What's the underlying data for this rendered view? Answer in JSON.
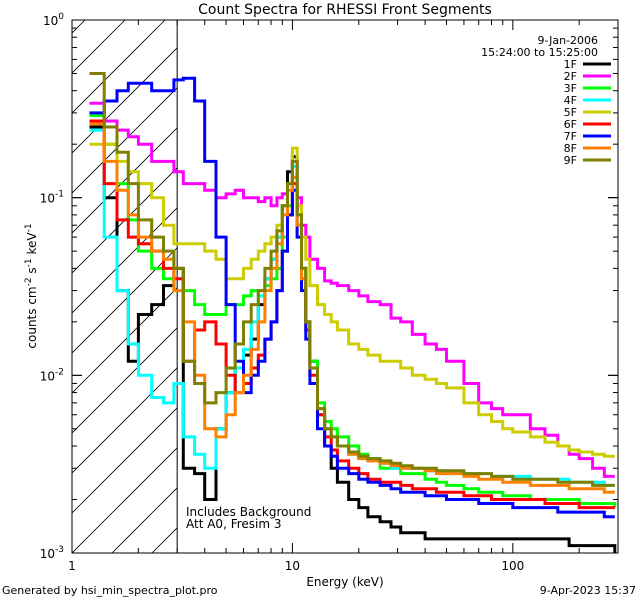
{
  "chart_data": {
    "type": "line",
    "title": "Count Spectra for RHESSI Front Segments",
    "xlabel": "Energy (keV)",
    "ylabel_parts": [
      "counts cm",
      "-2",
      " s",
      "-1",
      " keV",
      "-1"
    ],
    "xscale": "log",
    "yscale": "log",
    "xlim": [
      1,
      300
    ],
    "ylim": [
      0.001,
      1.0
    ],
    "x_ticks": [
      {
        "value": 1,
        "label": "1"
      },
      {
        "value": 10,
        "label": "10"
      },
      {
        "value": 100,
        "label": "100"
      }
    ],
    "y_ticks": [
      {
        "value": 1.0,
        "base": "10",
        "exp": "0"
      },
      {
        "value": 0.1,
        "base": "10",
        "exp": "-1"
      },
      {
        "value": 0.01,
        "base": "10",
        "exp": "-2"
      },
      {
        "value": 0.001,
        "base": "10",
        "exp": "-3"
      }
    ],
    "date_label": "9-Jan-2006",
    "time_label": "15:24:00 to 15:25:00",
    "annotations": [
      "Includes Background",
      "Att A0, Fresim 3"
    ],
    "hatch_region_x": [
      1,
      3
    ],
    "series": [
      {
        "name": "1F",
        "color": "#000000",
        "x": [
          1.2,
          1.4,
          1.6,
          1.8,
          2.0,
          2.3,
          2.6,
          2.9,
          3.2,
          3.6,
          4.0,
          4.5,
          5.0,
          5.5,
          6.0,
          6.5,
          7.0,
          7.5,
          8.0,
          8.5,
          9.0,
          9.5,
          10.0,
          10.5,
          11.0,
          11.5,
          12.0,
          13,
          14,
          15,
          16,
          18,
          20,
          22,
          25,
          28,
          31,
          35,
          40,
          45,
          50,
          60,
          70,
          80,
          90,
          100,
          120,
          140,
          160,
          180,
          200,
          230,
          260,
          290
        ],
        "y": [
          0.25,
          0.1,
          0.03,
          0.012,
          0.022,
          0.025,
          0.032,
          0.04,
          0.003,
          0.0028,
          0.002,
          0.005,
          0.008,
          0.011,
          0.013,
          0.016,
          0.025,
          0.035,
          0.045,
          0.06,
          0.09,
          0.14,
          0.17,
          0.08,
          0.04,
          0.02,
          0.012,
          0.006,
          0.004,
          0.003,
          0.0025,
          0.002,
          0.0018,
          0.0016,
          0.0015,
          0.0014,
          0.0013,
          0.0013,
          0.0012,
          0.0012,
          0.0012,
          0.0012,
          0.0012,
          0.0012,
          0.0012,
          0.0012,
          0.0012,
          0.0012,
          0.0012,
          0.0011,
          0.0011,
          0.0011,
          0.0011,
          0.001
        ]
      },
      {
        "name": "2F",
        "color": "#ff00ff",
        "x": [
          1.2,
          1.4,
          1.6,
          1.8,
          2.0,
          2.3,
          2.6,
          2.9,
          3.2,
          3.6,
          4.0,
          4.5,
          5.0,
          5.5,
          6.0,
          6.5,
          7.0,
          7.5,
          8.0,
          8.5,
          9.0,
          9.5,
          10.0,
          10.5,
          11.0,
          11.5,
          12.0,
          13,
          14,
          15,
          16,
          18,
          20,
          22,
          25,
          28,
          31,
          35,
          40,
          45,
          50,
          60,
          70,
          80,
          90,
          100,
          120,
          140,
          160,
          180,
          200,
          230,
          260,
          290
        ],
        "y": [
          0.34,
          0.27,
          0.24,
          0.22,
          0.2,
          0.16,
          0.16,
          0.14,
          0.12,
          0.12,
          0.11,
          0.1,
          0.105,
          0.11,
          0.1,
          0.1,
          0.095,
          0.1,
          0.09,
          0.1,
          0.105,
          0.12,
          0.16,
          0.1,
          0.07,
          0.06,
          0.045,
          0.04,
          0.034,
          0.033,
          0.032,
          0.03,
          0.028,
          0.026,
          0.025,
          0.021,
          0.02,
          0.017,
          0.015,
          0.014,
          0.012,
          0.009,
          0.007,
          0.0065,
          0.006,
          0.006,
          0.005,
          0.0046,
          0.004,
          0.0036,
          0.0034,
          0.003,
          0.0027,
          0.0027
        ]
      },
      {
        "name": "3F",
        "color": "#00ff00",
        "x": [
          1.2,
          1.4,
          1.6,
          1.8,
          2.0,
          2.3,
          2.6,
          2.9,
          3.2,
          3.6,
          4.0,
          4.5,
          5.0,
          5.5,
          6.0,
          6.5,
          7.0,
          7.5,
          8.0,
          8.5,
          9.0,
          9.5,
          10.0,
          10.5,
          11.0,
          11.5,
          12.0,
          13,
          14,
          15,
          16,
          18,
          20,
          22,
          25,
          28,
          31,
          35,
          40,
          45,
          50,
          60,
          70,
          80,
          90,
          100,
          120,
          140,
          160,
          180,
          200,
          230,
          260,
          290
        ],
        "y": [
          0.29,
          0.2,
          0.12,
          0.075,
          0.05,
          0.04,
          0.035,
          0.03,
          0.03,
          0.025,
          0.022,
          0.022,
          0.025,
          0.025,
          0.028,
          0.03,
          0.028,
          0.032,
          0.035,
          0.04,
          0.06,
          0.09,
          0.13,
          0.08,
          0.04,
          0.02,
          0.012,
          0.007,
          0.0055,
          0.005,
          0.0045,
          0.004,
          0.0036,
          0.0034,
          0.003,
          0.003,
          0.0028,
          0.0028,
          0.0026,
          0.0025,
          0.0024,
          0.0023,
          0.0022,
          0.0022,
          0.0021,
          0.0021,
          0.002,
          0.002,
          0.002,
          0.002,
          0.0019,
          0.0019,
          0.0019,
          0.0018
        ]
      },
      {
        "name": "4F",
        "color": "#00ffff",
        "x": [
          1.2,
          1.4,
          1.6,
          1.8,
          2.0,
          2.3,
          2.6,
          2.9,
          3.2,
          3.6,
          4.0,
          4.5,
          5.0,
          5.5,
          6.0,
          6.5,
          7.0,
          7.5,
          8.0,
          8.5,
          9.0,
          9.5,
          10.0,
          10.5,
          11.0,
          11.5,
          12.0,
          13,
          14,
          15,
          16,
          18,
          20,
          22,
          25,
          28,
          31,
          35,
          40,
          45,
          50,
          60,
          70,
          80,
          90,
          100,
          120,
          140,
          160,
          180,
          200,
          230,
          260,
          290
        ],
        "y": [
          0.24,
          0.06,
          0.03,
          0.015,
          0.01,
          0.0075,
          0.007,
          0.009,
          0.0045,
          0.0036,
          0.003,
          0.005,
          0.008,
          0.011,
          0.014,
          0.02,
          0.028,
          0.035,
          0.045,
          0.06,
          0.09,
          0.12,
          0.15,
          0.07,
          0.035,
          0.02,
          0.011,
          0.006,
          0.005,
          0.0045,
          0.004,
          0.0036,
          0.0034,
          0.0033,
          0.0032,
          0.003,
          0.003,
          0.003,
          0.0029,
          0.0029,
          0.0028,
          0.0028,
          0.0028,
          0.0027,
          0.0027,
          0.0027,
          0.0026,
          0.0026,
          0.0026,
          0.0025,
          0.0025,
          0.0025,
          0.0024,
          0.0024
        ]
      },
      {
        "name": "5F",
        "color": "#cccc00",
        "x": [
          1.2,
          1.4,
          1.6,
          1.8,
          2.0,
          2.3,
          2.6,
          2.9,
          3.2,
          3.6,
          4.0,
          4.5,
          5.0,
          5.5,
          6.0,
          6.5,
          7.0,
          7.5,
          8.0,
          8.5,
          9.0,
          9.5,
          10.0,
          10.5,
          11.0,
          11.5,
          12.0,
          13,
          14,
          15,
          16,
          18,
          20,
          22,
          25,
          28,
          31,
          35,
          40,
          45,
          50,
          60,
          70,
          80,
          90,
          100,
          120,
          140,
          160,
          180,
          200,
          230,
          260,
          290
        ],
        "y": [
          0.2,
          0.2,
          0.16,
          0.14,
          0.12,
          0.1,
          0.07,
          0.055,
          0.055,
          0.055,
          0.05,
          0.045,
          0.035,
          0.035,
          0.04,
          0.045,
          0.05,
          0.055,
          0.06,
          0.07,
          0.09,
          0.12,
          0.19,
          0.09,
          0.06,
          0.045,
          0.032,
          0.025,
          0.022,
          0.02,
          0.018,
          0.015,
          0.014,
          0.013,
          0.012,
          0.012,
          0.011,
          0.01,
          0.0095,
          0.009,
          0.0085,
          0.007,
          0.006,
          0.0055,
          0.005,
          0.0048,
          0.0045,
          0.0042,
          0.004,
          0.0038,
          0.0037,
          0.0036,
          0.0035,
          0.0035
        ]
      },
      {
        "name": "6F",
        "color": "#ff0000",
        "x": [
          1.2,
          1.4,
          1.6,
          1.8,
          2.0,
          2.3,
          2.6,
          2.9,
          3.2,
          3.6,
          4.0,
          4.5,
          5.0,
          5.5,
          6.0,
          6.5,
          7.0,
          7.5,
          8.0,
          8.5,
          9.0,
          9.5,
          10.0,
          10.5,
          11.0,
          11.5,
          12.0,
          13,
          14,
          15,
          16,
          18,
          20,
          22,
          25,
          28,
          31,
          35,
          40,
          45,
          50,
          60,
          70,
          80,
          90,
          100,
          120,
          140,
          160,
          180,
          200,
          230,
          260,
          290
        ],
        "y": [
          0.27,
          0.12,
          0.075,
          0.06,
          0.055,
          0.05,
          0.04,
          0.035,
          0.012,
          0.018,
          0.02,
          0.015,
          0.01,
          0.008,
          0.009,
          0.011,
          0.013,
          0.016,
          0.02,
          0.03,
          0.05,
          0.08,
          0.12,
          0.07,
          0.035,
          0.018,
          0.01,
          0.006,
          0.0045,
          0.0038,
          0.0033,
          0.003,
          0.0028,
          0.0026,
          0.0025,
          0.0025,
          0.0024,
          0.0023,
          0.0023,
          0.0022,
          0.0022,
          0.0021,
          0.0021,
          0.002,
          0.002,
          0.002,
          0.002,
          0.0019,
          0.0019,
          0.0019,
          0.0018,
          0.0018,
          0.0018,
          0.0018
        ]
      },
      {
        "name": "7F",
        "color": "#0000ff",
        "x": [
          1.2,
          1.4,
          1.6,
          1.8,
          2.0,
          2.3,
          2.6,
          2.9,
          3.2,
          3.6,
          4.0,
          4.5,
          5.0,
          5.5,
          6.0,
          6.5,
          7.0,
          7.5,
          8.0,
          8.5,
          9.0,
          9.5,
          10.0,
          10.5,
          11.0,
          11.5,
          12.0,
          13,
          14,
          15,
          16,
          18,
          20,
          22,
          25,
          28,
          31,
          35,
          40,
          45,
          50,
          60,
          70,
          80,
          90,
          100,
          120,
          140,
          160,
          180,
          200,
          230,
          260,
          290
        ],
        "y": [
          0.3,
          0.35,
          0.4,
          0.44,
          0.44,
          0.4,
          0.4,
          0.46,
          0.47,
          0.35,
          0.16,
          0.06,
          0.025,
          0.012,
          0.008,
          0.01,
          0.012,
          0.016,
          0.02,
          0.03,
          0.05,
          0.08,
          0.11,
          0.06,
          0.03,
          0.016,
          0.009,
          0.005,
          0.004,
          0.0035,
          0.003,
          0.0028,
          0.0026,
          0.0025,
          0.0024,
          0.0023,
          0.0022,
          0.0022,
          0.0021,
          0.0021,
          0.002,
          0.002,
          0.0019,
          0.0019,
          0.0019,
          0.0018,
          0.0018,
          0.0018,
          0.0017,
          0.0017,
          0.0017,
          0.0017,
          0.0016,
          0.0016
        ]
      },
      {
        "name": "8F",
        "color": "#ff8000",
        "x": [
          1.2,
          1.4,
          1.6,
          1.8,
          2.0,
          2.3,
          2.6,
          2.9,
          3.2,
          3.6,
          4.0,
          4.5,
          5.0,
          5.5,
          6.0,
          6.5,
          7.0,
          7.5,
          8.0,
          8.5,
          9.0,
          9.5,
          10.0,
          10.5,
          11.0,
          11.5,
          12.0,
          13,
          14,
          15,
          16,
          18,
          20,
          22,
          25,
          28,
          31,
          35,
          40,
          45,
          50,
          60,
          70,
          80,
          90,
          100,
          120,
          140,
          160,
          180,
          200,
          230,
          260,
          290
        ],
        "y": [
          0.26,
          0.16,
          0.11,
          0.08,
          0.06,
          0.05,
          0.045,
          0.03,
          0.02,
          0.01,
          0.005,
          0.0045,
          0.006,
          0.008,
          0.01,
          0.014,
          0.02,
          0.03,
          0.04,
          0.055,
          0.08,
          0.11,
          0.13,
          0.07,
          0.035,
          0.02,
          0.011,
          0.0065,
          0.005,
          0.0045,
          0.004,
          0.0036,
          0.0034,
          0.0033,
          0.0032,
          0.0031,
          0.003,
          0.003,
          0.0029,
          0.0028,
          0.0028,
          0.0027,
          0.0026,
          0.0026,
          0.0025,
          0.0025,
          0.0024,
          0.0024,
          0.0024,
          0.0023,
          0.0023,
          0.0023,
          0.0022,
          0.0022
        ]
      },
      {
        "name": "9F",
        "color": "#808000",
        "x": [
          1.2,
          1.4,
          1.6,
          1.8,
          2.0,
          2.3,
          2.6,
          2.9,
          3.2,
          3.6,
          4.0,
          4.5,
          5.0,
          5.5,
          6.0,
          6.5,
          7.0,
          7.5,
          8.0,
          8.5,
          9.0,
          9.5,
          10.0,
          10.5,
          11.0,
          11.5,
          12.0,
          13,
          14,
          15,
          16,
          18,
          20,
          22,
          25,
          28,
          31,
          35,
          40,
          45,
          50,
          60,
          70,
          80,
          90,
          100,
          120,
          140,
          160,
          180,
          200,
          230,
          260,
          290
        ],
        "y": [
          0.5,
          0.25,
          0.18,
          0.12,
          0.075,
          0.06,
          0.05,
          0.04,
          0.012,
          0.009,
          0.007,
          0.008,
          0.011,
          0.015,
          0.02,
          0.025,
          0.03,
          0.04,
          0.05,
          0.065,
          0.09,
          0.12,
          0.16,
          0.08,
          0.04,
          0.02,
          0.011,
          0.0065,
          0.005,
          0.0045,
          0.004,
          0.0037,
          0.0035,
          0.0034,
          0.0033,
          0.0032,
          0.0031,
          0.003,
          0.003,
          0.0029,
          0.0029,
          0.0028,
          0.0028,
          0.0027,
          0.0027,
          0.0026,
          0.0026,
          0.0026,
          0.0025,
          0.0025,
          0.0025,
          0.0024,
          0.0024,
          0.0024
        ]
      }
    ]
  },
  "footer": {
    "left": "Generated by hsi_min_spectra_plot.pro",
    "right": "9-Apr-2023 15:37"
  }
}
